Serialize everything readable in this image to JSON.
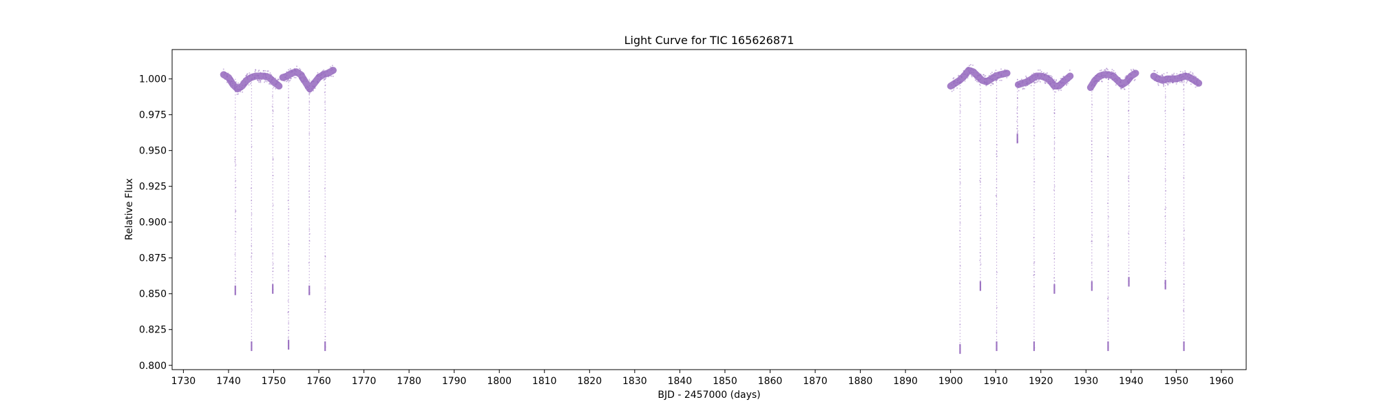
{
  "chart_data": {
    "type": "scatter",
    "title": "Light Curve for TIC 165626871",
    "xlabel": "BJD - 2457000 (days)",
    "ylabel": "Relative Flux",
    "xlim": [
      1727.5,
      1965.5
    ],
    "ylim": [
      0.797,
      1.0205
    ],
    "xticks": [
      1730,
      1740,
      1750,
      1760,
      1770,
      1780,
      1790,
      1800,
      1810,
      1820,
      1830,
      1840,
      1850,
      1860,
      1870,
      1880,
      1890,
      1900,
      1910,
      1920,
      1930,
      1940,
      1950,
      1960
    ],
    "yticks": [
      0.8,
      0.825,
      0.85,
      0.875,
      0.9,
      0.925,
      0.95,
      0.975,
      1.0
    ],
    "ytick_labels": [
      "0.800",
      "0.825",
      "0.850",
      "0.875",
      "0.900",
      "0.925",
      "0.950",
      "0.975",
      "1.000"
    ],
    "grid": false,
    "marker_color": "#9467bd",
    "series": [
      {
        "baseline_segments": [
          {
            "x": [
              1738.9,
              1740.0,
              1741.0,
              1742.0,
              1743.0,
              1744.0,
              1745.0,
              1746.0,
              1747.0,
              1748.0,
              1749.0,
              1750.0,
              1751.2
            ],
            "y": [
              1.003,
              1.001,
              0.996,
              0.993,
              0.995,
              0.999,
              1.001,
              1.002,
              1.002,
              1.002,
              1.001,
              0.998,
              0.995
            ]
          },
          {
            "x": [
              1752.0,
              1753.0,
              1754.0,
              1755.0,
              1756.0,
              1757.0,
              1758.0,
              1759.0,
              1760.0,
              1761.0,
              1762.0,
              1763.2
            ],
            "y": [
              1.001,
              1.002,
              1.004,
              1.005,
              1.003,
              0.998,
              0.993,
              0.997,
              1.001,
              1.003,
              1.004,
              1.006
            ]
          },
          {
            "x": [
              1900.0,
              1901.0,
              1902.0,
              1903.0,
              1904.0,
              1905.0,
              1906.0,
              1907.0,
              1908.0,
              1909.0,
              1910.0,
              1911.0,
              1912.5
            ],
            "y": [
              0.995,
              0.997,
              0.999,
              1.002,
              1.006,
              1.005,
              1.002,
              0.999,
              0.998,
              1.0,
              1.002,
              1.003,
              1.004
            ]
          },
          {
            "x": [
              1915.0,
              1916.0,
              1917.0,
              1918.0,
              1919.0,
              1920.0,
              1921.0,
              1922.0,
              1923.0,
              1924.0,
              1925.0,
              1926.5
            ],
            "y": [
              0.996,
              0.997,
              0.998,
              1.0,
              1.002,
              1.002,
              1.001,
              0.999,
              0.995,
              0.995,
              0.998,
              1.002
            ]
          },
          {
            "x": [
              1931.0,
              1932.0,
              1933.0,
              1934.0,
              1935.0,
              1936.0,
              1937.0,
              1938.0,
              1939.0,
              1940.0,
              1941.0
            ],
            "y": [
              0.994,
              0.999,
              1.002,
              1.003,
              1.003,
              1.002,
              0.999,
              0.996,
              0.998,
              1.002,
              1.004
            ]
          },
          {
            "x": [
              1945.0,
              1946.0,
              1947.0,
              1948.0,
              1949.0,
              1950.0,
              1951.0,
              1952.0,
              1953.0,
              1954.0,
              1955.0
            ],
            "y": [
              1.002,
              1.0,
              0.999,
              1.0,
              1.0,
              1.0,
              1.001,
              1.002,
              1.001,
              0.999,
              0.997
            ]
          }
        ],
        "transits": [
          {
            "x": 1741.5,
            "depth": 0.849
          },
          {
            "x": 1745.1,
            "depth": 0.81
          },
          {
            "x": 1749.8,
            "depth": 0.85
          },
          {
            "x": 1753.3,
            "depth": 0.811
          },
          {
            "x": 1757.9,
            "depth": 0.849
          },
          {
            "x": 1761.4,
            "depth": 0.81
          },
          {
            "x": 1902.1,
            "depth": 0.808
          },
          {
            "x": 1906.6,
            "depth": 0.852
          },
          {
            "x": 1910.2,
            "depth": 0.81
          },
          {
            "x": 1914.8,
            "depth": 0.955
          },
          {
            "x": 1918.5,
            "depth": 0.81
          },
          {
            "x": 1923.0,
            "depth": 0.85
          },
          {
            "x": 1931.3,
            "depth": 0.852
          },
          {
            "x": 1934.9,
            "depth": 0.81
          },
          {
            "x": 1939.5,
            "depth": 0.855
          },
          {
            "x": 1947.6,
            "depth": 0.853
          },
          {
            "x": 1951.7,
            "depth": 0.81
          }
        ]
      }
    ]
  }
}
